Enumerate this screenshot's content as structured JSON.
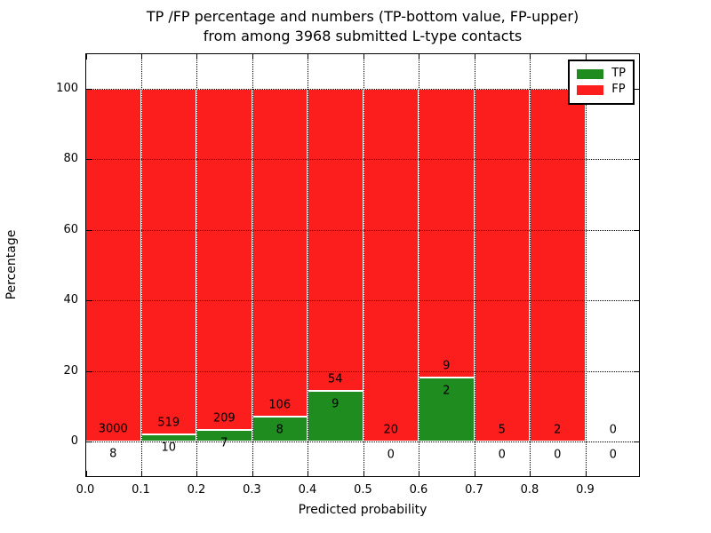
{
  "title": {
    "line1": "TP /FP percentage and numbers (TP-bottom value, FP-upper)",
    "line2": "from among 3968 submitted L-type contacts"
  },
  "axes": {
    "xlabel": "Predicted probability",
    "ylabel": "Percentage"
  },
  "legend": {
    "items": [
      {
        "label": "TP",
        "color": "#1e8c1e"
      },
      {
        "label": "FP",
        "color": "#fc1d1d"
      }
    ]
  },
  "colors": {
    "tp": "#1e8c1e",
    "fp": "#fc1d1d",
    "background": "#ffffff",
    "frame": "#000000",
    "grid": "#000000"
  },
  "chart_data": {
    "type": "bar",
    "stacked": true,
    "title": "TP /FP percentage and numbers (TP-bottom value, FP-upper) from among 3968 submitted L-type contacts",
    "xlabel": "Predicted probability",
    "ylabel": "Percentage",
    "xlim": [
      0.0,
      1.0
    ],
    "ylim": [
      -10,
      110
    ],
    "x_tick_values": [
      0.0,
      0.1,
      0.2,
      0.3,
      0.4,
      0.5,
      0.6,
      0.7,
      0.8,
      0.9
    ],
    "x_tick_labels": [
      "0.0",
      "0.1",
      "0.2",
      "0.3",
      "0.4",
      "0.5",
      "0.6",
      "0.7",
      "0.8",
      "0.9"
    ],
    "y_tick_values": [
      0,
      20,
      40,
      60,
      80,
      100
    ],
    "y_tick_labels": [
      "0",
      "20",
      "40",
      "60",
      "80",
      "100"
    ],
    "grid": "dotted, both axes, drawn above bars",
    "legend_position": "upper right",
    "total_contacts": 3968,
    "annotation_note": "TP count printed below bin top of green bar, FP count printed above it",
    "bins": [
      {
        "range": [
          0.0,
          0.1
        ],
        "tp": 8,
        "fp": 3000,
        "tp_pct": 0.27,
        "fp_pct": 99.73
      },
      {
        "range": [
          0.1,
          0.2
        ],
        "tp": 10,
        "fp": 519,
        "tp_pct": 1.89,
        "fp_pct": 98.11
      },
      {
        "range": [
          0.2,
          0.3
        ],
        "tp": 7,
        "fp": 209,
        "tp_pct": 3.24,
        "fp_pct": 96.76
      },
      {
        "range": [
          0.3,
          0.4
        ],
        "tp": 8,
        "fp": 106,
        "tp_pct": 7.02,
        "fp_pct": 92.98
      },
      {
        "range": [
          0.4,
          0.5
        ],
        "tp": 9,
        "fp": 54,
        "tp_pct": 14.29,
        "fp_pct": 85.71
      },
      {
        "range": [
          0.5,
          0.6
        ],
        "tp": 0,
        "fp": 20,
        "tp_pct": 0.0,
        "fp_pct": 100.0
      },
      {
        "range": [
          0.6,
          0.7
        ],
        "tp": 2,
        "fp": 9,
        "tp_pct": 18.18,
        "fp_pct": 81.82
      },
      {
        "range": [
          0.7,
          0.8
        ],
        "tp": 0,
        "fp": 5,
        "tp_pct": 0.0,
        "fp_pct": 100.0
      },
      {
        "range": [
          0.8,
          0.9
        ],
        "tp": 0,
        "fp": 2,
        "tp_pct": 0.0,
        "fp_pct": 100.0
      },
      {
        "range": [
          0.9,
          1.0
        ],
        "tp": 0,
        "fp": 0,
        "tp_pct": 0.0,
        "fp_pct": 0.0
      }
    ],
    "series": [
      {
        "name": "TP",
        "color": "#1e8c1e",
        "values": [
          8,
          10,
          7,
          8,
          9,
          0,
          2,
          0,
          0,
          0
        ]
      },
      {
        "name": "FP",
        "color": "#fc1d1d",
        "values": [
          3000,
          519,
          209,
          106,
          54,
          20,
          9,
          5,
          2,
          0
        ]
      }
    ]
  }
}
